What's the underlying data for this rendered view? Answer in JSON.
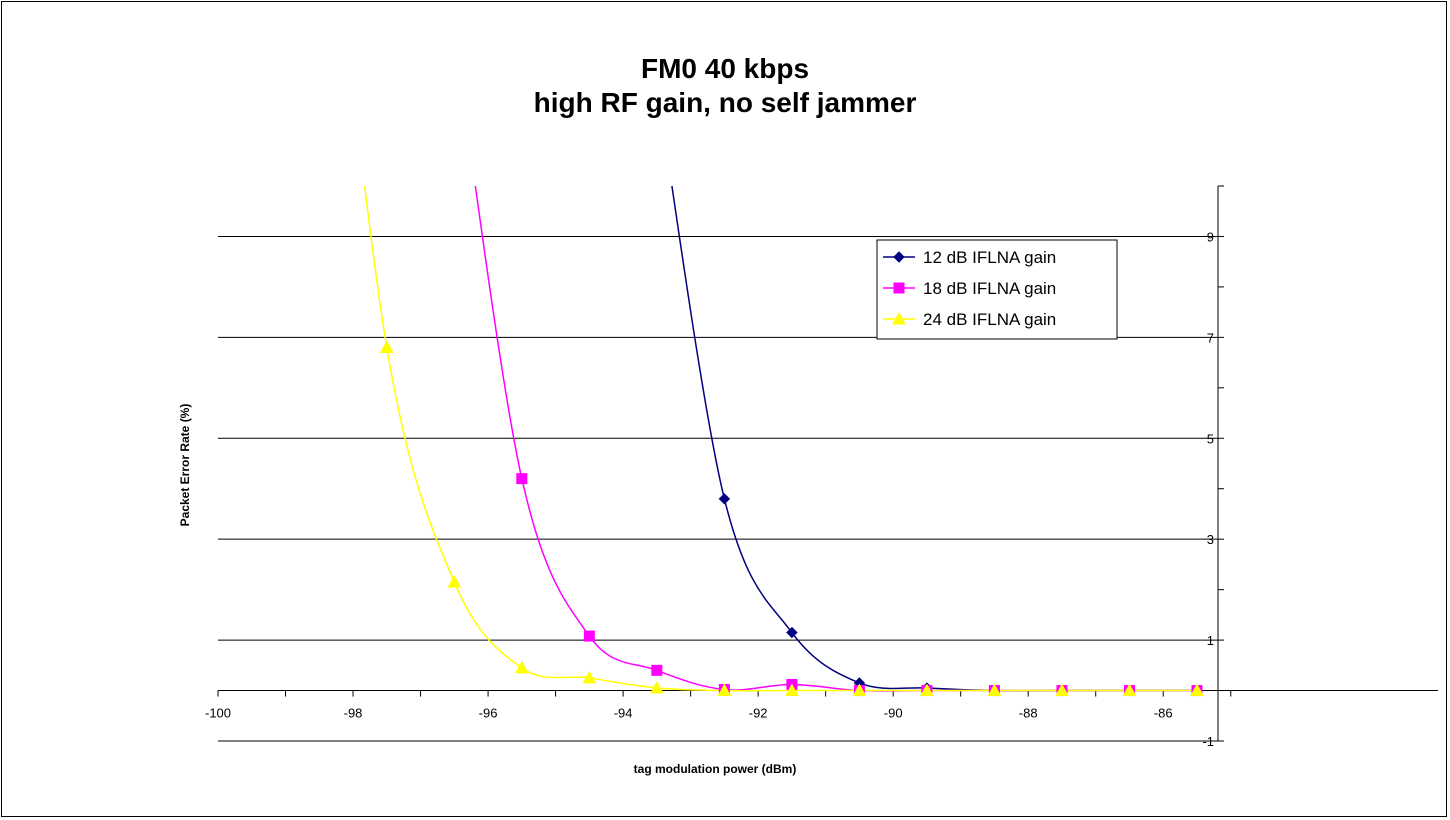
{
  "chart_data": {
    "type": "line",
    "title_lines": [
      "FM0 40 kbps",
      "high RF gain, no self jammer"
    ],
    "xlabel": "tag modulation power (dBm)",
    "ylabel": "Packet Error Rate (%)",
    "xlim": [
      -100,
      -85
    ],
    "ylim": [
      -1,
      10
    ],
    "x_ticks": [
      "-100",
      "-98",
      "-96",
      "-94",
      "-92",
      "-90",
      "-88",
      "-86"
    ],
    "y_ticks": [
      "9",
      "7",
      "5",
      "3",
      "1",
      "-1"
    ],
    "grid": "horizontal gridlines",
    "legend_position": "top-right inside plot",
    "series": [
      {
        "name": "12 dB IFLNA gain",
        "color": "#000080",
        "marker": "diamond",
        "x": [
          -93.5,
          -92.5,
          -91.5,
          -90.5,
          -89.5,
          -88.5,
          -87.5,
          -86.5,
          -85.5
        ],
        "y": [
          12.0,
          3.8,
          1.15,
          0.15,
          0.05,
          0,
          0,
          0,
          0
        ],
        "visible_markers_from_index": 1
      },
      {
        "name": "18 dB IFLNA gain",
        "color": "#FF00FF",
        "marker": "square",
        "x": [
          -96.5,
          -95.5,
          -94.5,
          -93.5,
          -92.5,
          -91.5,
          -90.5,
          -89.5,
          -88.5,
          -87.5,
          -86.5,
          -85.5
        ],
        "y": [
          13.0,
          4.2,
          1.08,
          0.4,
          0.02,
          0.12,
          0,
          0,
          0,
          0,
          0,
          0
        ],
        "visible_markers_from_index": 1
      },
      {
        "name": "24 dB IFLNA gain",
        "color": "#FFFF00",
        "marker": "triangle",
        "x": [
          -98.5,
          -97.5,
          -96.5,
          -95.5,
          -94.5,
          -93.5,
          -92.5,
          -91.5,
          -90.5,
          -89.5,
          -88.5,
          -87.5,
          -86.5,
          -85.5
        ],
        "y": [
          18.0,
          6.8,
          2.15,
          0.45,
          0.25,
          0.05,
          0,
          0,
          0,
          0,
          0,
          0,
          0,
          0
        ],
        "visible_markers_from_index": 1
      }
    ]
  }
}
